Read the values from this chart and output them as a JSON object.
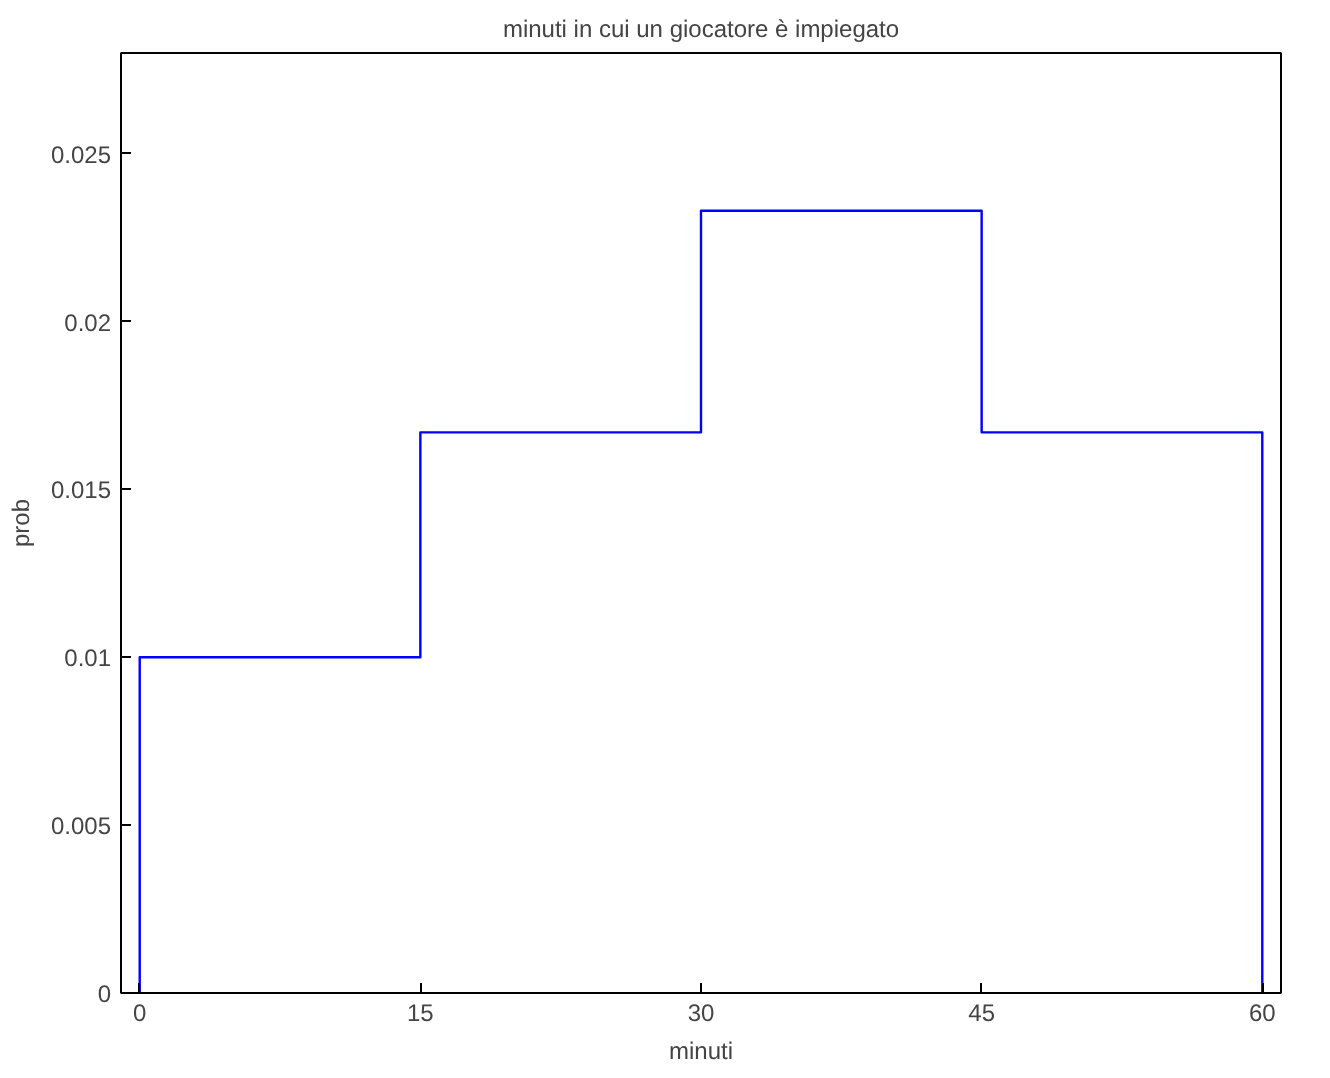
{
  "chart_data": {
    "type": "histogram",
    "title": "minuti in cui un giocatore è impiegato",
    "xlabel": "minuti",
    "ylabel": "prob",
    "bins": [
      0,
      15,
      30,
      45,
      60
    ],
    "values": [
      0.01,
      0.0167,
      0.0233,
      0.0167
    ],
    "color": "#0000ff",
    "xlim": [
      -1,
      61
    ],
    "ylim": [
      0,
      0.028
    ],
    "xticks": [
      0,
      15,
      30,
      45,
      60
    ],
    "yticks": [
      0,
      0.005,
      0.01,
      0.015,
      0.02,
      0.025
    ],
    "grid": false
  }
}
